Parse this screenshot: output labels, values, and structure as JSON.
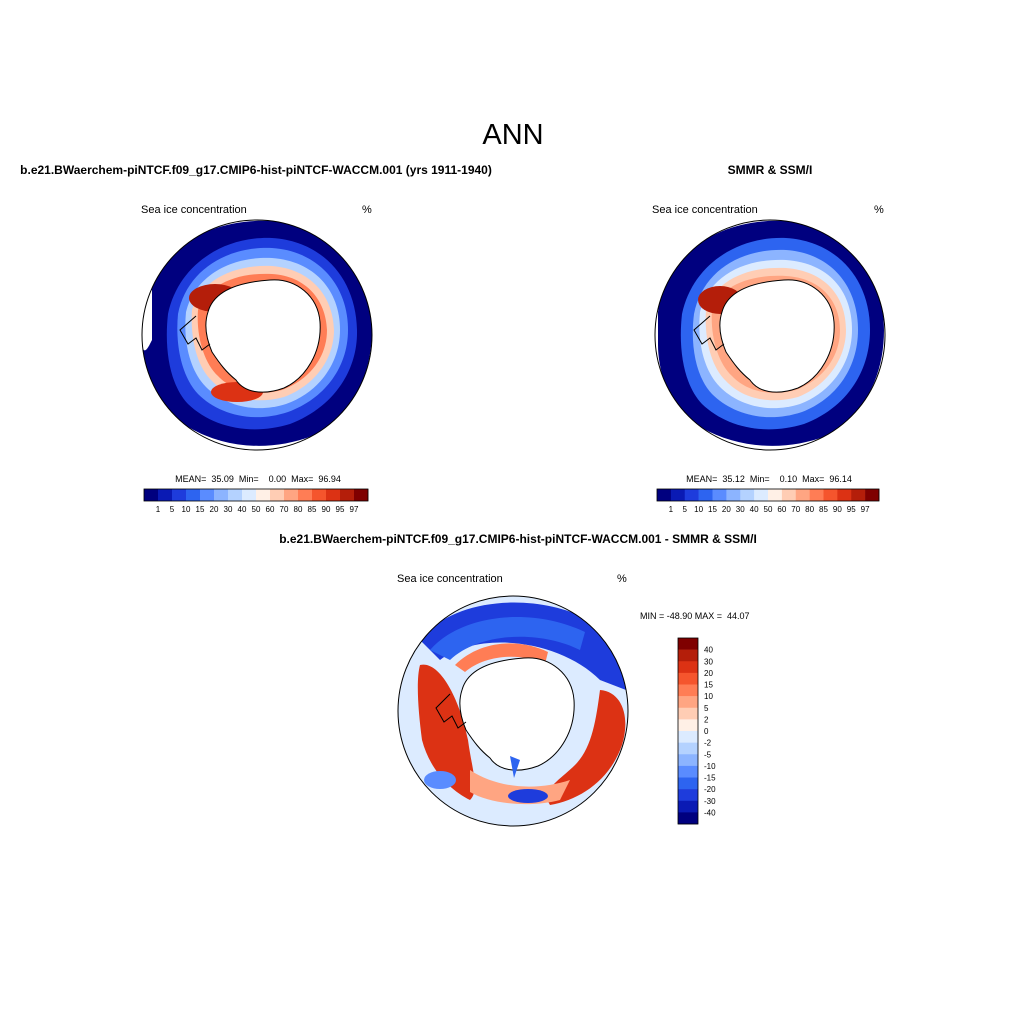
{
  "figure": {
    "main_title": "ANN",
    "panels": [
      {
        "title": "b.e21.BWaerchem-piNTCF.f09_g17.CMIP6-hist-piNTCF-WACCM.001 (yrs 1911-1940)",
        "variable_label": "Sea ice concentration",
        "units": "%",
        "stats": {
          "mean": "35.09",
          "min": "0.00",
          "max": "96.94"
        },
        "stats_text": "MEAN=  35.09  Min=    0.00  Max=  96.94"
      },
      {
        "title": "SMMR & SSM/I",
        "variable_label": "Sea ice concentration",
        "units": "%",
        "stats": {
          "mean": "35.12",
          "min": "0.10",
          "max": "96.14"
        },
        "stats_text": "MEAN=  35.12  Min=    0.10  Max=  96.14"
      },
      {
        "title": "b.e21.BWaerchem-piNTCF.f09_g17.CMIP6-hist-piNTCF-WACCM.001 - SMMR & SSM/I",
        "variable_label": "Sea ice concentration",
        "units": "%",
        "stats_text": "MIN = -48.90 MAX =  44.07"
      }
    ]
  },
  "colorbars": {
    "concentration": {
      "labels": [
        "1",
        "5",
        "10",
        "15",
        "20",
        "30",
        "40",
        "50",
        "60",
        "70",
        "80",
        "85",
        "90",
        "95",
        "97"
      ],
      "colors": [
        "#00007f",
        "#0a1ab4",
        "#1e3cdc",
        "#2d64f0",
        "#5a8cff",
        "#8cb4ff",
        "#b4d2ff",
        "#dcebff",
        "#fff0e6",
        "#ffcdb4",
        "#ffa582",
        "#ff7d55",
        "#f5552d",
        "#dc3214",
        "#b41e0a",
        "#7f0000"
      ]
    },
    "difference": {
      "labels": [
        "40",
        "30",
        "20",
        "15",
        "10",
        "5",
        "2",
        "0",
        "-2",
        "-5",
        "-10",
        "-15",
        "-20",
        "-30",
        "-40"
      ],
      "colors": [
        "#7f0000",
        "#b41e0a",
        "#dc3214",
        "#f5552d",
        "#ff7d55",
        "#ffa582",
        "#ffcdb4",
        "#fff0e6",
        "#dcebff",
        "#b4d2ff",
        "#8cb4ff",
        "#5a8cff",
        "#2d64f0",
        "#1e3cdc",
        "#0a1ab4",
        "#00007f"
      ]
    }
  }
}
